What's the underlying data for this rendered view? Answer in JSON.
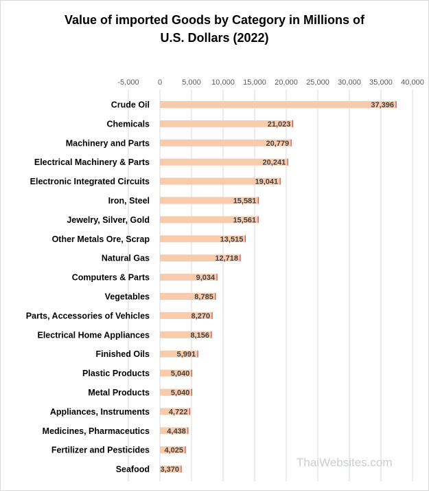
{
  "chart_data": {
    "type": "bar",
    "orientation": "horizontal",
    "title": [
      "Value of imported Goods by Category in Millions of",
      "U.S. Dollars (2022)"
    ],
    "categories": [
      "Crude Oil",
      "Chemicals",
      "Machinery and Parts",
      "Electrical Machinery & Parts",
      "Electronic Integrated Circuits",
      "Iron, Steel",
      "Jewelry, Silver, Gold",
      "Other Metals Ore, Scrap",
      "Natural Gas",
      "Computers & Parts",
      "Vegetables",
      "Parts, Accessories of Vehicles",
      "Electrical Home Appliances",
      "Finished Oils",
      "Plastic Products",
      "Metal Products",
      "Appliances, Instruments",
      "Medicines, Pharmaceutics",
      "Fertilizer and Pesticides",
      "Seafood"
    ],
    "values": [
      37396,
      21023,
      20779,
      20241,
      19041,
      15581,
      15561,
      13515,
      12718,
      9034,
      8785,
      8270,
      8156,
      5991,
      5040,
      5040,
      4722,
      4438,
      4025,
      3370
    ],
    "value_labels": [
      "37,396",
      "21,023",
      "20,779",
      "20,241",
      "19,041",
      "15,581",
      "15,561",
      "13,515",
      "12,718",
      "9,034",
      "8,785",
      "8,270",
      "8,156",
      "5,991",
      "5,040",
      "5,040",
      "4,722",
      "4,438",
      "4,025",
      "3,370"
    ],
    "xlim": [
      -5000,
      40000
    ],
    "xticks": [
      -5000,
      0,
      5000,
      10000,
      15000,
      20000,
      25000,
      30000,
      35000,
      40000
    ],
    "xtick_labels": [
      "-5,000",
      "0",
      "5,000",
      "10,000",
      "15,000",
      "20,000",
      "25,000",
      "30,000",
      "35,000",
      "40,000"
    ],
    "x_axis_position": "top",
    "grid": true,
    "legend": false,
    "colors": {
      "bar": "#f8cbad",
      "bar_edge": "#c0504d",
      "grid": "#d9d9d9"
    }
  },
  "watermark": "ThaiWebsites.com"
}
